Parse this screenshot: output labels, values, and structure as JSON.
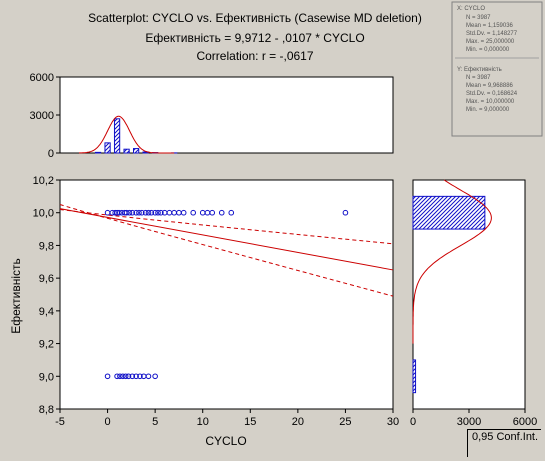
{
  "title": {
    "line1": "Scatterplot: CYCLO    vs.  Ефективність (Casewise MD deletion)",
    "line2": "Ефективність = 9,9712 - ,0107  * CYCLO",
    "line3": "Correlation: r = -,0617"
  },
  "stats_box_x": {
    "header": "X:  CYCLO",
    "lines": [
      "N = 3987",
      "Mean = 1,159036",
      "Std.Dv. = 1,148277",
      "Max. = 25,000000",
      "Min. = 0,000000"
    ]
  },
  "stats_box_y": {
    "header": "Y:  Ефективність",
    "lines": [
      "N = 3987",
      "Mean = 9,968886",
      "Std.Dv. = 0,168624",
      "Max. = 10,000000",
      "Min. = 9,000000"
    ]
  },
  "conf_label": "0,95 Conf.Int.",
  "colors": {
    "points": "#1010c8",
    "fit": "#cc0000",
    "background": "#d4d0c8",
    "plot": "#ffffff"
  },
  "chart_data": [
    {
      "type": "scatter",
      "xlabel": "CYCLO",
      "ylabel": "Ефективність",
      "xlim": [
        -5,
        30
      ],
      "ylim": [
        8.8,
        10.2
      ],
      "x_ticks": [
        "-5",
        "0",
        "5",
        "10",
        "15",
        "20",
        "25",
        "30"
      ],
      "y_ticks": [
        "8,8",
        "9,0",
        "9,2",
        "9,4",
        "9,6",
        "9,8",
        "10,0",
        "10,2"
      ],
      "points_y10_x": [
        0,
        0.5,
        0.8,
        1,
        1.2,
        1.5,
        1.8,
        2,
        2.3,
        2.6,
        3,
        3.3,
        3.6,
        4,
        4.3,
        4.6,
        5,
        5.3,
        5.6,
        6,
        6.5,
        7,
        7.5,
        8,
        9,
        10,
        10.5,
        11,
        12,
        13,
        25
      ],
      "points_y9_x": [
        0,
        1,
        1.3,
        1.6,
        1.9,
        2.2,
        2.6,
        3,
        3.4,
        3.8,
        4.3,
        5
      ],
      "regression": {
        "intercept": 9.9712,
        "slope": -0.0107
      },
      "confidence": 0.95,
      "conf_band": {
        "upper": [
          [
            -5,
            10.02
          ],
          [
            0,
            9.98
          ],
          [
            30,
            9.81
          ]
        ],
        "lower": [
          [
            -5,
            10.05
          ],
          [
            0,
            9.96
          ],
          [
            30,
            9.49
          ]
        ]
      }
    },
    {
      "type": "bar",
      "name": "x-histogram",
      "xlim": [
        -5,
        30
      ],
      "ylim": [
        0,
        6000
      ],
      "y_ticks": [
        "0",
        "3000",
        "6000"
      ],
      "bins": [
        {
          "x": -1,
          "count": 50
        },
        {
          "x": 0,
          "count": 800
        },
        {
          "x": 1,
          "count": 2700
        },
        {
          "x": 2,
          "count": 300
        },
        {
          "x": 3,
          "count": 350
        },
        {
          "x": 4,
          "count": 80
        },
        {
          "x": 5,
          "count": 30
        },
        {
          "x": 7,
          "count": 10
        }
      ],
      "normal_curve": {
        "mean": 1.159036,
        "sd": 1.148277,
        "peak": 2900
      }
    },
    {
      "type": "bar",
      "name": "y-histogram",
      "orientation": "horizontal",
      "xlim": [
        0,
        6000
      ],
      "x_ticks": [
        "0",
        "3000",
        "6000"
      ],
      "bins": [
        {
          "y": 10.0,
          "count": 3850
        },
        {
          "y": 9.0,
          "count": 137
        }
      ]
    }
  ]
}
